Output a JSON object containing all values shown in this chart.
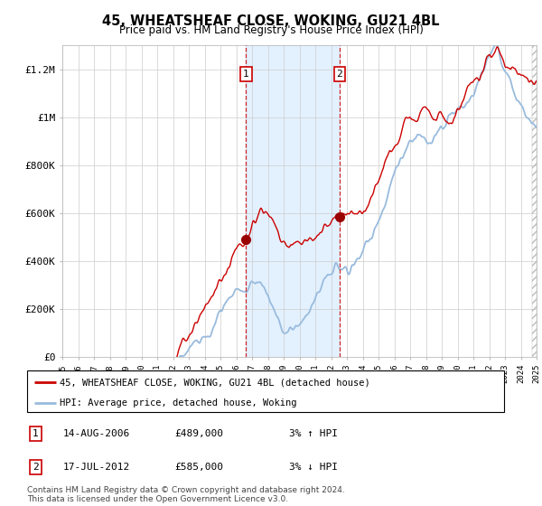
{
  "title": "45, WHEATSHEAF CLOSE, WOKING, GU21 4BL",
  "subtitle": "Price paid vs. HM Land Registry's House Price Index (HPI)",
  "hpi_label": "HPI: Average price, detached house, Woking",
  "property_label": "45, WHEATSHEAF CLOSE, WOKING, GU21 4BL (detached house)",
  "footnote": "Contains HM Land Registry data © Crown copyright and database right 2024.\nThis data is licensed under the Open Government Licence v3.0.",
  "transaction1": {
    "num": "1",
    "date": "14-AUG-2006",
    "price": "£489,000",
    "change": "3% ↑ HPI"
  },
  "transaction2": {
    "num": "2",
    "date": "17-JUL-2012",
    "price": "£585,000",
    "change": "3% ↓ HPI"
  },
  "ylim": [
    0,
    1300000
  ],
  "yticks": [
    0,
    200000,
    400000,
    600000,
    800000,
    1000000,
    1200000
  ],
  "ytick_labels": [
    "£0",
    "£200K",
    "£400K",
    "£600K",
    "£800K",
    "£1M",
    "£1.2M"
  ],
  "property_color": "#cc0000",
  "hpi_color": "#99bbdd",
  "marker_color": "#990000",
  "shade_color": "#ddeeff",
  "dashed_color": "#cc0000",
  "background_color": "#ffffff",
  "grid_color": "#cccccc",
  "t1_year": 2006.62,
  "t2_year": 2012.54,
  "start_year": 1995,
  "end_year": 2025,
  "n_points": 1800
}
